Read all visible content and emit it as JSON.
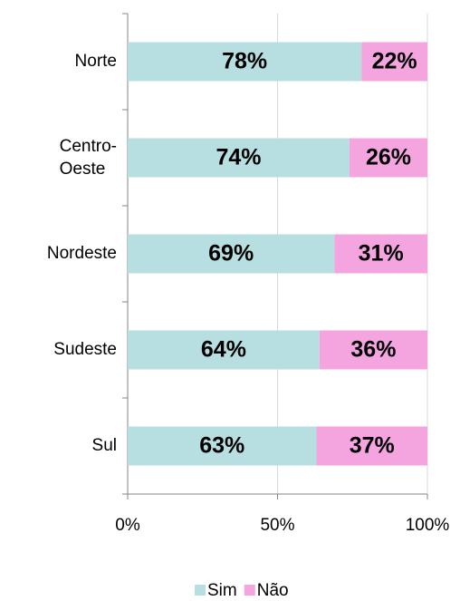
{
  "chart_data": {
    "type": "stacked-bar-horizontal",
    "categories": [
      "Norte",
      "Centro-Oeste",
      "Nordeste",
      "Sudeste",
      "Sul"
    ],
    "series": [
      {
        "name": "Sim",
        "color": "#b7dee0",
        "values": [
          78,
          74,
          69,
          64,
          63
        ],
        "value_labels": [
          "78%",
          "74%",
          "69%",
          "64%",
          "63%"
        ]
      },
      {
        "name": "Não",
        "color": "#f4a5e0",
        "values": [
          22,
          26,
          31,
          36,
          37
        ],
        "value_labels": [
          "22%",
          "26%",
          "31%",
          "36%",
          "37%"
        ]
      }
    ],
    "xlim": [
      0,
      100
    ],
    "xticks": [
      {
        "value": 0,
        "label": "0%"
      },
      {
        "value": 50,
        "label": "50%"
      },
      {
        "value": 100,
        "label": "100%"
      }
    ],
    "grid": true,
    "legend": "bottom"
  }
}
